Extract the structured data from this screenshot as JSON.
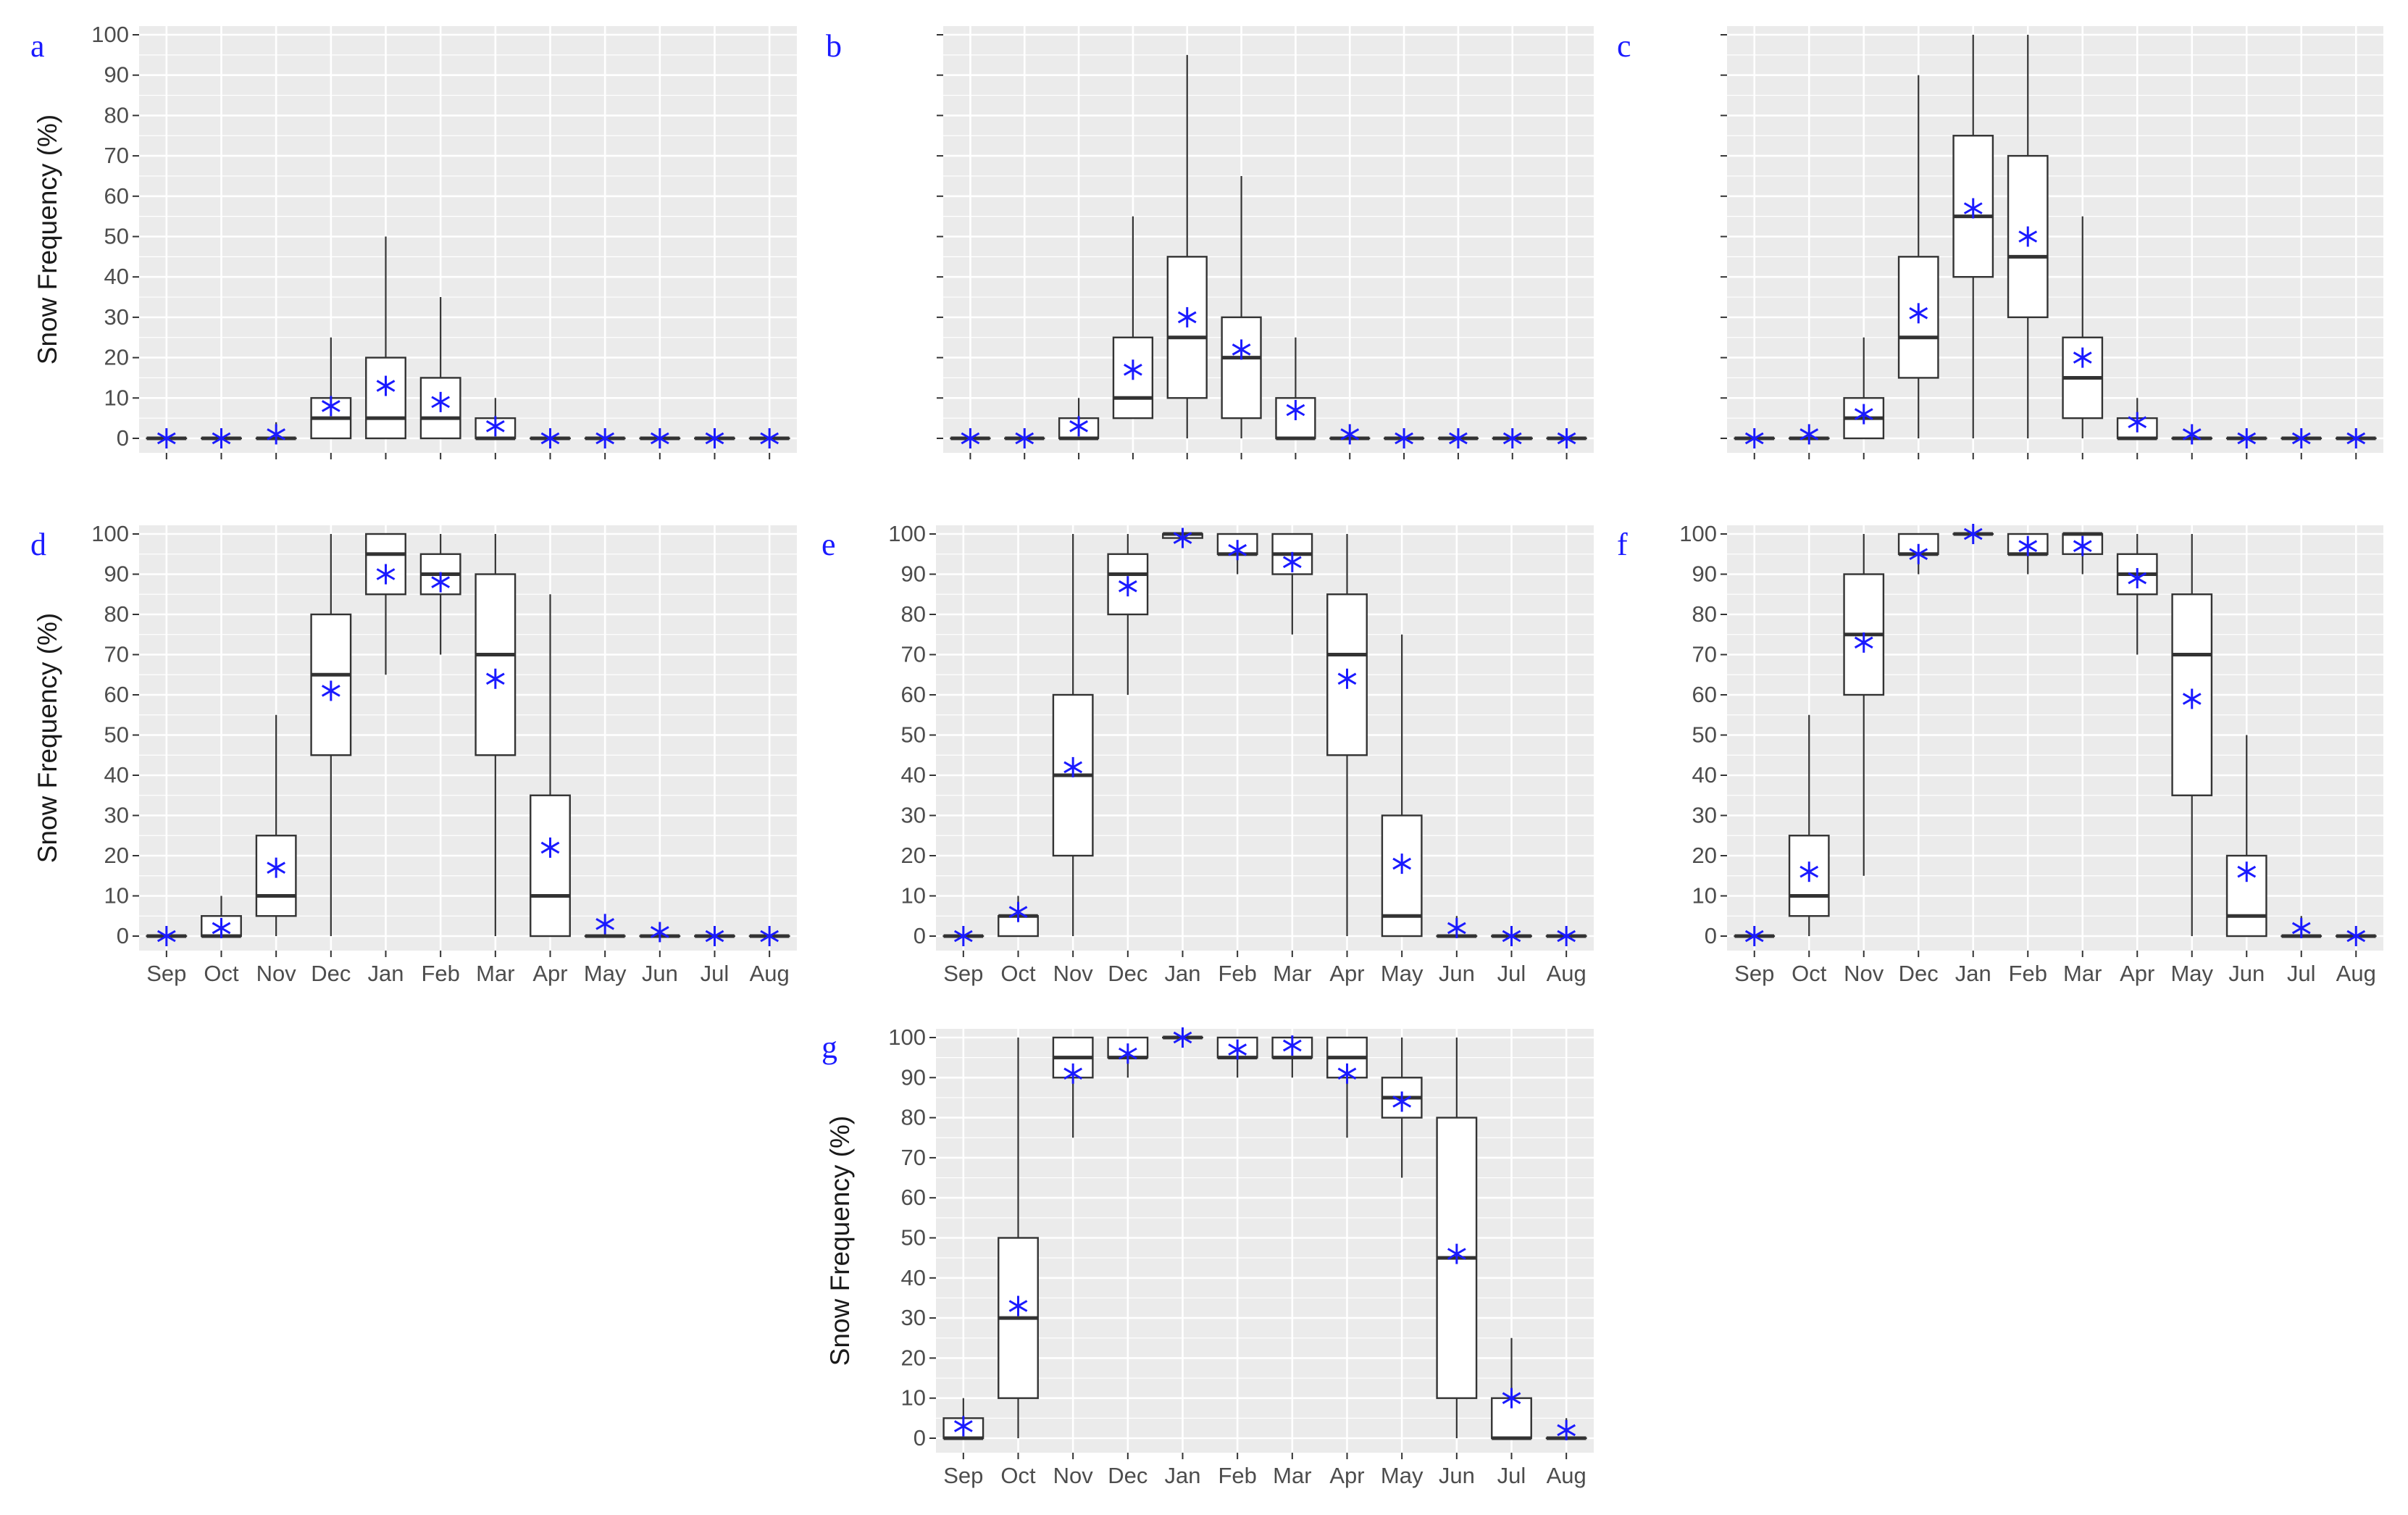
{
  "figure": {
    "ylabel": "Snow Frequency (%)",
    "months": [
      "Sep",
      "Oct",
      "Nov",
      "Dec",
      "Jan",
      "Feb",
      "Mar",
      "Apr",
      "May",
      "Jun",
      "Jul",
      "Aug"
    ],
    "yticks": [
      0,
      10,
      20,
      30,
      40,
      50,
      60,
      70,
      80,
      90,
      100
    ],
    "colors": {
      "panel_bg": "#ebebeb",
      "grid": "#ffffff",
      "box": "#333333",
      "mean": "#1a1aff",
      "letter": "#1a1aff"
    }
  },
  "chart_data": [
    {
      "type": "box",
      "panel": "a",
      "xlabel": "",
      "ylabel": "Snow Frequency (%)",
      "ylim": [
        0,
        100
      ],
      "categories": [
        "Sep",
        "Oct",
        "Nov",
        "Dec",
        "Jan",
        "Feb",
        "Mar",
        "Apr",
        "May",
        "Jun",
        "Jul",
        "Aug"
      ],
      "boxes": [
        {
          "min": 0,
          "q1": 0,
          "median": 0,
          "q3": 0,
          "max": 0,
          "mean": 0
        },
        {
          "min": 0,
          "q1": 0,
          "median": 0,
          "q3": 0,
          "max": 0,
          "mean": 0
        },
        {
          "min": 0,
          "q1": 0,
          "median": 0,
          "q3": 0,
          "max": 4,
          "mean": 1
        },
        {
          "min": 0,
          "q1": 0,
          "median": 5,
          "q3": 10,
          "max": 25,
          "mean": 8
        },
        {
          "min": 0,
          "q1": 0,
          "median": 5,
          "q3": 20,
          "max": 50,
          "mean": 13
        },
        {
          "min": 0,
          "q1": 0,
          "median": 5,
          "q3": 15,
          "max": 35,
          "mean": 9
        },
        {
          "min": 0,
          "q1": 0,
          "median": 0,
          "q3": 5,
          "max": 10,
          "mean": 3
        },
        {
          "min": 0,
          "q1": 0,
          "median": 0,
          "q3": 0,
          "max": 0,
          "mean": 0
        },
        {
          "min": 0,
          "q1": 0,
          "median": 0,
          "q3": 0,
          "max": 0,
          "mean": 0
        },
        {
          "min": 0,
          "q1": 0,
          "median": 0,
          "q3": 0,
          "max": 0,
          "mean": 0
        },
        {
          "min": 0,
          "q1": 0,
          "median": 0,
          "q3": 0,
          "max": 0,
          "mean": 0
        },
        {
          "min": 0,
          "q1": 0,
          "median": 0,
          "q3": 0,
          "max": 0,
          "mean": 0
        }
      ]
    },
    {
      "type": "box",
      "panel": "b",
      "xlabel": "",
      "ylabel": "",
      "ylim": [
        0,
        100
      ],
      "categories": [
        "Sep",
        "Oct",
        "Nov",
        "Dec",
        "Jan",
        "Feb",
        "Mar",
        "Apr",
        "May",
        "Jun",
        "Jul",
        "Aug"
      ],
      "boxes": [
        {
          "min": 0,
          "q1": 0,
          "median": 0,
          "q3": 0,
          "max": 0,
          "mean": 0
        },
        {
          "min": 0,
          "q1": 0,
          "median": 0,
          "q3": 0,
          "max": 0,
          "mean": 0
        },
        {
          "min": 0,
          "q1": 0,
          "median": 0,
          "q3": 5,
          "max": 10,
          "mean": 3
        },
        {
          "min": 5,
          "q1": 5,
          "median": 10,
          "q3": 25,
          "max": 55,
          "mean": 17
        },
        {
          "min": 0,
          "q1": 10,
          "median": 25,
          "q3": 45,
          "max": 95,
          "mean": 30
        },
        {
          "min": 0,
          "q1": 5,
          "median": 20,
          "q3": 30,
          "max": 65,
          "mean": 22
        },
        {
          "min": 0,
          "q1": 0,
          "median": 0,
          "q3": 10,
          "max": 25,
          "mean": 7
        },
        {
          "min": 0,
          "q1": 0,
          "median": 0,
          "q3": 0,
          "max": 0,
          "mean": 1
        },
        {
          "min": 0,
          "q1": 0,
          "median": 0,
          "q3": 0,
          "max": 0,
          "mean": 0
        },
        {
          "min": 0,
          "q1": 0,
          "median": 0,
          "q3": 0,
          "max": 0,
          "mean": 0
        },
        {
          "min": 0,
          "q1": 0,
          "median": 0,
          "q3": 0,
          "max": 0,
          "mean": 0
        },
        {
          "min": 0,
          "q1": 0,
          "median": 0,
          "q3": 0,
          "max": 0,
          "mean": 0
        }
      ]
    },
    {
      "type": "box",
      "panel": "c",
      "xlabel": "",
      "ylabel": "",
      "ylim": [
        0,
        100
      ],
      "categories": [
        "Sep",
        "Oct",
        "Nov",
        "Dec",
        "Jan",
        "Feb",
        "Mar",
        "Apr",
        "May",
        "Jun",
        "Jul",
        "Aug"
      ],
      "boxes": [
        {
          "min": 0,
          "q1": 0,
          "median": 0,
          "q3": 0,
          "max": 0,
          "mean": 0
        },
        {
          "min": 0,
          "q1": 0,
          "median": 0,
          "q3": 0,
          "max": 0,
          "mean": 1
        },
        {
          "min": 0,
          "q1": 0,
          "median": 5,
          "q3": 10,
          "max": 25,
          "mean": 6
        },
        {
          "min": 0,
          "q1": 15,
          "median": 25,
          "q3": 45,
          "max": 90,
          "mean": 31
        },
        {
          "min": 0,
          "q1": 40,
          "median": 55,
          "q3": 75,
          "max": 100,
          "mean": 57
        },
        {
          "min": 0,
          "q1": 30,
          "median": 45,
          "q3": 70,
          "max": 100,
          "mean": 50
        },
        {
          "min": 0,
          "q1": 5,
          "median": 15,
          "q3": 25,
          "max": 55,
          "mean": 20
        },
        {
          "min": 0,
          "q1": 0,
          "median": 0,
          "q3": 5,
          "max": 10,
          "mean": 4
        },
        {
          "min": 0,
          "q1": 0,
          "median": 0,
          "q3": 0,
          "max": 0,
          "mean": 1
        },
        {
          "min": 0,
          "q1": 0,
          "median": 0,
          "q3": 0,
          "max": 0,
          "mean": 0
        },
        {
          "min": 0,
          "q1": 0,
          "median": 0,
          "q3": 0,
          "max": 0,
          "mean": 0
        },
        {
          "min": 0,
          "q1": 0,
          "median": 0,
          "q3": 0,
          "max": 0,
          "mean": 0
        }
      ]
    },
    {
      "type": "box",
      "panel": "d",
      "xlabel": "",
      "ylabel": "Snow Frequency (%)",
      "ylim": [
        0,
        100
      ],
      "categories": [
        "Sep",
        "Oct",
        "Nov",
        "Dec",
        "Jan",
        "Feb",
        "Mar",
        "Apr",
        "May",
        "Jun",
        "Jul",
        "Aug"
      ],
      "boxes": [
        {
          "min": 0,
          "q1": 0,
          "median": 0,
          "q3": 0,
          "max": 0,
          "mean": 0
        },
        {
          "min": 0,
          "q1": 0,
          "median": 0,
          "q3": 5,
          "max": 10,
          "mean": 2
        },
        {
          "min": 0,
          "q1": 5,
          "median": 10,
          "q3": 25,
          "max": 55,
          "mean": 17
        },
        {
          "min": 0,
          "q1": 45,
          "median": 65,
          "q3": 80,
          "max": 100,
          "mean": 61
        },
        {
          "min": 65,
          "q1": 85,
          "median": 95,
          "q3": 100,
          "max": 100,
          "mean": 90
        },
        {
          "min": 70,
          "q1": 85,
          "median": 90,
          "q3": 95,
          "max": 100,
          "mean": 88
        },
        {
          "min": 0,
          "q1": 45,
          "median": 70,
          "q3": 90,
          "max": 100,
          "mean": 64
        },
        {
          "min": 0,
          "q1": 0,
          "median": 10,
          "q3": 35,
          "max": 85,
          "mean": 22
        },
        {
          "min": 0,
          "q1": 0,
          "median": 0,
          "q3": 0,
          "max": 5,
          "mean": 3
        },
        {
          "min": 0,
          "q1": 0,
          "median": 0,
          "q3": 0,
          "max": 0,
          "mean": 1
        },
        {
          "min": 0,
          "q1": 0,
          "median": 0,
          "q3": 0,
          "max": 0,
          "mean": 0
        },
        {
          "min": 0,
          "q1": 0,
          "median": 0,
          "q3": 0,
          "max": 0,
          "mean": 0
        }
      ]
    },
    {
      "type": "box",
      "panel": "e",
      "xlabel": "",
      "ylabel": "",
      "ylim": [
        0,
        100
      ],
      "categories": [
        "Sep",
        "Oct",
        "Nov",
        "Dec",
        "Jan",
        "Feb",
        "Mar",
        "Apr",
        "May",
        "Jun",
        "Jul",
        "Aug"
      ],
      "boxes": [
        {
          "min": 0,
          "q1": 0,
          "median": 0,
          "q3": 0,
          "max": 0,
          "mean": 0
        },
        {
          "min": 0,
          "q1": 0,
          "median": 5,
          "q3": 5,
          "max": 10,
          "mean": 6
        },
        {
          "min": 0,
          "q1": 20,
          "median": 40,
          "q3": 60,
          "max": 100,
          "mean": 42
        },
        {
          "min": 60,
          "q1": 80,
          "median": 90,
          "q3": 95,
          "max": 100,
          "mean": 87
        },
        {
          "min": 98,
          "q1": 99,
          "median": 100,
          "q3": 100,
          "max": 100,
          "mean": 99
        },
        {
          "min": 90,
          "q1": 95,
          "median": 95,
          "q3": 100,
          "max": 100,
          "mean": 96
        },
        {
          "min": 75,
          "q1": 90,
          "median": 95,
          "q3": 100,
          "max": 100,
          "mean": 93
        },
        {
          "min": 0,
          "q1": 45,
          "median": 70,
          "q3": 85,
          "max": 100,
          "mean": 64
        },
        {
          "min": 0,
          "q1": 0,
          "median": 5,
          "q3": 30,
          "max": 75,
          "mean": 18
        },
        {
          "min": 0,
          "q1": 0,
          "median": 0,
          "q3": 0,
          "max": 5,
          "mean": 2
        },
        {
          "min": 0,
          "q1": 0,
          "median": 0,
          "q3": 0,
          "max": 0,
          "mean": 0
        },
        {
          "min": 0,
          "q1": 0,
          "median": 0,
          "q3": 0,
          "max": 0,
          "mean": 0
        }
      ]
    },
    {
      "type": "box",
      "panel": "f",
      "xlabel": "",
      "ylabel": "",
      "ylim": [
        0,
        100
      ],
      "categories": [
        "Sep",
        "Oct",
        "Nov",
        "Dec",
        "Jan",
        "Feb",
        "Mar",
        "Apr",
        "May",
        "Jun",
        "Jul",
        "Aug"
      ],
      "boxes": [
        {
          "min": 0,
          "q1": 0,
          "median": 0,
          "q3": 0,
          "max": 0,
          "mean": 0
        },
        {
          "min": 0,
          "q1": 5,
          "median": 10,
          "q3": 25,
          "max": 55,
          "mean": 16
        },
        {
          "min": 15,
          "q1": 60,
          "median": 75,
          "q3": 90,
          "max": 100,
          "mean": 73
        },
        {
          "min": 90,
          "q1": 95,
          "median": 95,
          "q3": 100,
          "max": 100,
          "mean": 95
        },
        {
          "min": 99,
          "q1": 100,
          "median": 100,
          "q3": 100,
          "max": 100,
          "mean": 100
        },
        {
          "min": 90,
          "q1": 95,
          "median": 95,
          "q3": 100,
          "max": 100,
          "mean": 97
        },
        {
          "min": 90,
          "q1": 95,
          "median": 100,
          "q3": 100,
          "max": 100,
          "mean": 97
        },
        {
          "min": 70,
          "q1": 85,
          "median": 90,
          "q3": 95,
          "max": 100,
          "mean": 89
        },
        {
          "min": 0,
          "q1": 35,
          "median": 70,
          "q3": 85,
          "max": 100,
          "mean": 59
        },
        {
          "min": 0,
          "q1": 0,
          "median": 5,
          "q3": 20,
          "max": 50,
          "mean": 16
        },
        {
          "min": 0,
          "q1": 0,
          "median": 0,
          "q3": 0,
          "max": 5,
          "mean": 2
        },
        {
          "min": 0,
          "q1": 0,
          "median": 0,
          "q3": 0,
          "max": 0,
          "mean": 0
        }
      ]
    },
    {
      "type": "box",
      "panel": "g",
      "xlabel": "",
      "ylabel": "Snow Frequency (%)",
      "ylim": [
        0,
        100
      ],
      "categories": [
        "Sep",
        "Oct",
        "Nov",
        "Dec",
        "Jan",
        "Feb",
        "Mar",
        "Apr",
        "May",
        "Jun",
        "Jul",
        "Aug"
      ],
      "boxes": [
        {
          "min": 0,
          "q1": 0,
          "median": 0,
          "q3": 5,
          "max": 10,
          "mean": 3
        },
        {
          "min": 0,
          "q1": 10,
          "median": 30,
          "q3": 50,
          "max": 100,
          "mean": 33
        },
        {
          "min": 75,
          "q1": 90,
          "median": 95,
          "q3": 100,
          "max": 100,
          "mean": 91
        },
        {
          "min": 90,
          "q1": 95,
          "median": 95,
          "q3": 100,
          "max": 100,
          "mean": 96
        },
        {
          "min": 99,
          "q1": 100,
          "median": 100,
          "q3": 100,
          "max": 100,
          "mean": 100
        },
        {
          "min": 90,
          "q1": 95,
          "median": 95,
          "q3": 100,
          "max": 100,
          "mean": 97
        },
        {
          "min": 90,
          "q1": 95,
          "median": 95,
          "q3": 100,
          "max": 100,
          "mean": 98
        },
        {
          "min": 75,
          "q1": 90,
          "median": 95,
          "q3": 100,
          "max": 100,
          "mean": 91
        },
        {
          "min": 65,
          "q1": 80,
          "median": 85,
          "q3": 90,
          "max": 100,
          "mean": 84
        },
        {
          "min": 0,
          "q1": 10,
          "median": 45,
          "q3": 80,
          "max": 100,
          "mean": 46
        },
        {
          "min": 0,
          "q1": 0,
          "median": 0,
          "q3": 10,
          "max": 25,
          "mean": 10
        },
        {
          "min": 0,
          "q1": 0,
          "median": 0,
          "q3": 0,
          "max": 5,
          "mean": 2
        }
      ]
    }
  ]
}
